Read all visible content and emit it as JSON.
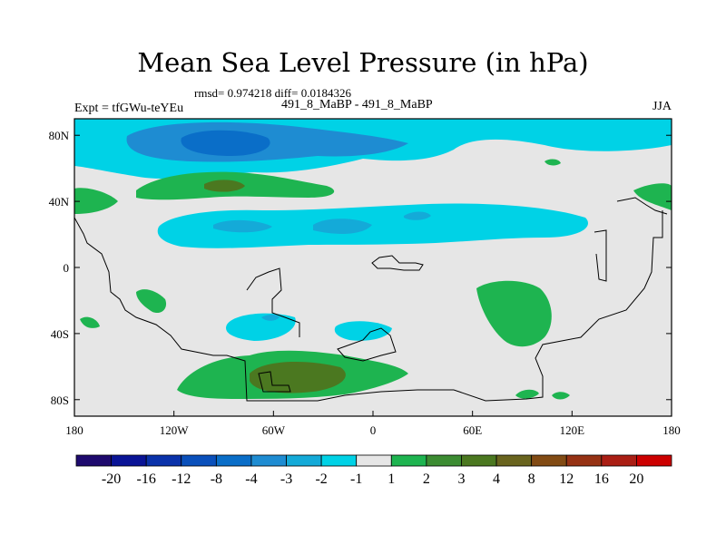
{
  "chart_data": {
    "type": "heatmap",
    "title": "Mean Sea Level Pressure (in hPa)",
    "stats_text": "rmsd= 0.974218 diff= 0.0184326",
    "left_label": "Expt = tfGWu-teYEu",
    "center_label": "491_8_MaBP - 491_8_MaBP",
    "right_label": "JJA",
    "x_ticks": [
      "180",
      "120W",
      "60W",
      "0",
      "60E",
      "120E",
      "180"
    ],
    "y_ticks": [
      "80N",
      "40N",
      "0",
      "40S",
      "80S"
    ],
    "xlim": [
      -180,
      180
    ],
    "ylim": [
      -90,
      90
    ],
    "colorbar": {
      "labels": [
        "-20",
        "-16",
        "-12",
        "-8",
        "-4",
        "-3",
        "-2",
        "-1",
        "1",
        "2",
        "3",
        "4",
        "8",
        "12",
        "16",
        "20"
      ],
      "colors": [
        "#1e0a6e",
        "#0a1496",
        "#0a32aa",
        "#0a50bb",
        "#0a6ec8",
        "#1e8cd2",
        "#14aad8",
        "#00d2e6",
        "#e6e6e6",
        "#1eb450",
        "#3c8c32",
        "#4b7820",
        "#69641e",
        "#824b14",
        "#963214",
        "#aa1e14",
        "#cc0000"
      ]
    },
    "regions": [
      {
        "name": "arctic-low-outer",
        "level": "-2",
        "lon": -180,
        "lat": 75,
        "desc": "broad negative band across high northern latitudes"
      },
      {
        "name": "arctic-low-core",
        "level": "-3",
        "lon": -100,
        "lat": 75
      },
      {
        "name": "arctic-low-center",
        "level": "-4",
        "lon": -95,
        "lat": 78
      },
      {
        "name": "north-atlantic-high",
        "level": "2",
        "lon": -60,
        "lat": 50
      },
      {
        "name": "north-atlantic-high-core",
        "level": "3",
        "lon": -88,
        "lat": 50
      },
      {
        "name": "midlat-low-band",
        "level": "-2",
        "lon": -70,
        "lat": 25
      },
      {
        "name": "south-atlantic-low",
        "level": "-2",
        "lon": -55,
        "lat": -38
      },
      {
        "name": "southern-africa-low",
        "level": "-2",
        "lon": -5,
        "lat": -38
      },
      {
        "name": "southern-ocean-high",
        "level": "2",
        "lon": -45,
        "lat": -65
      },
      {
        "name": "southern-ocean-high-core",
        "level": "3",
        "lon": -45,
        "lat": -65
      },
      {
        "name": "indian-ocean-high",
        "level": "2",
        "lon": 80,
        "lat": -20
      }
    ]
  }
}
